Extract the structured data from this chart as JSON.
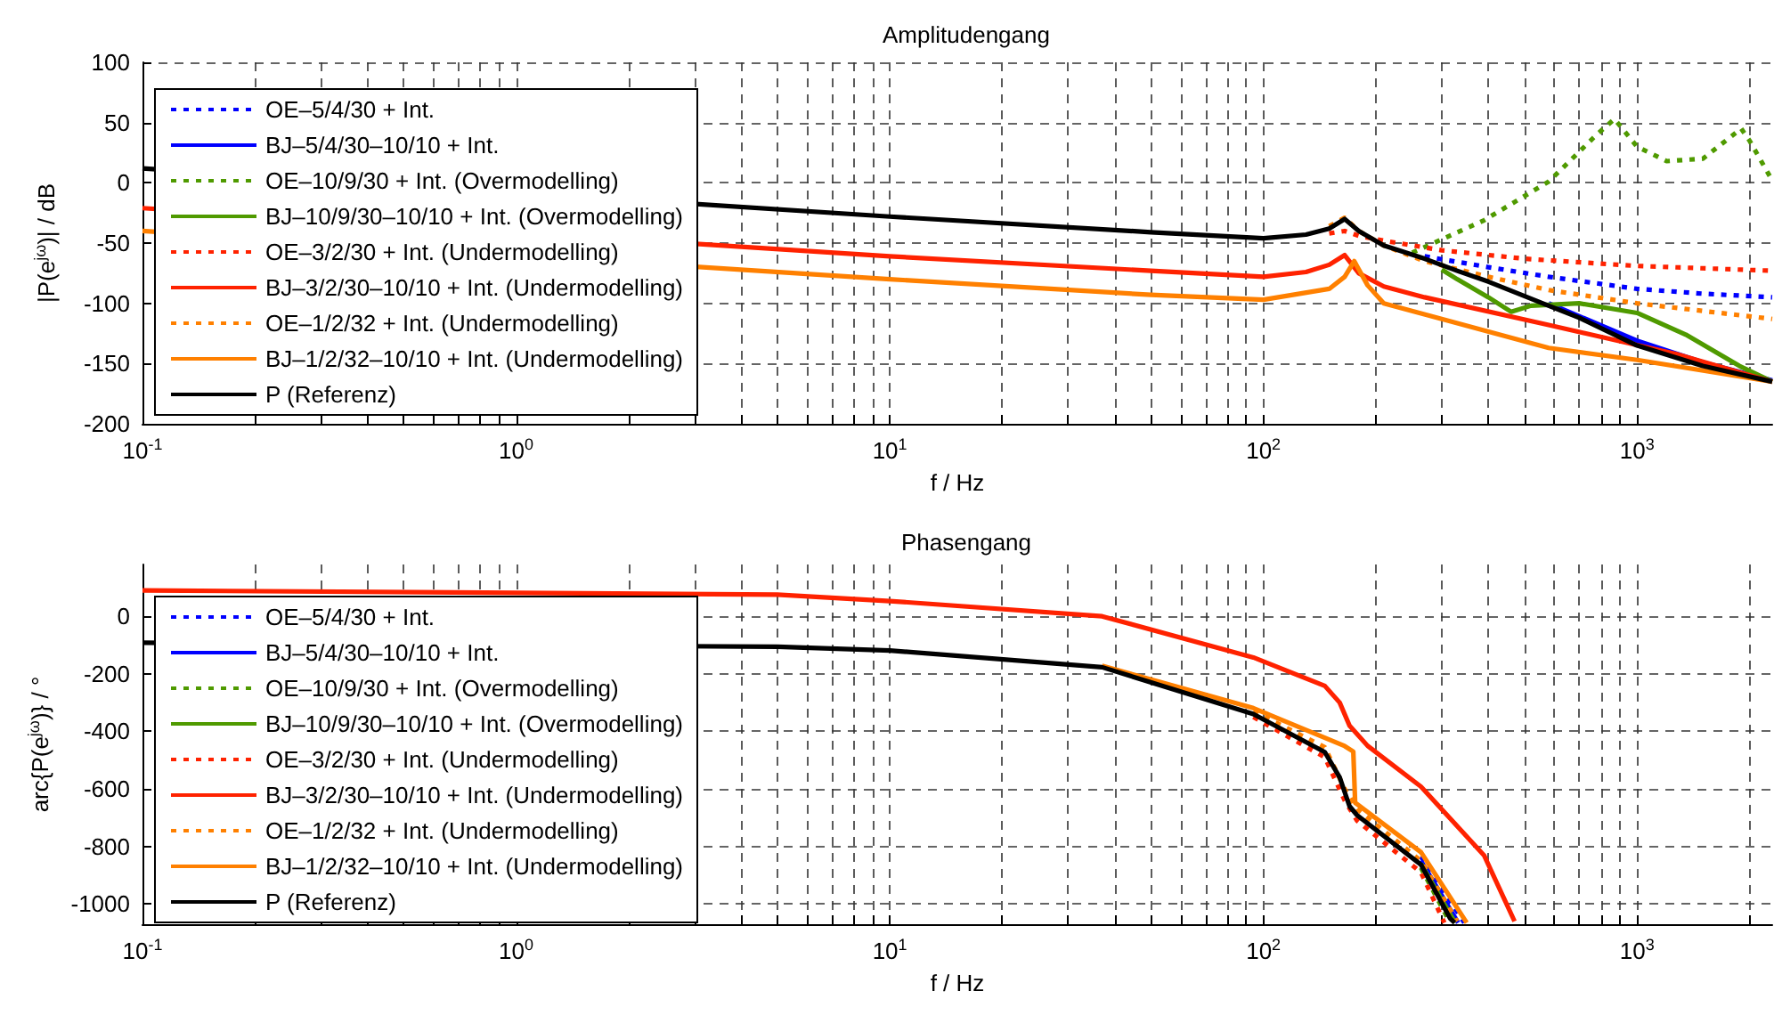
{
  "chart_data": [
    {
      "type": "line",
      "title": "Amplitudengang",
      "xlabel": "f / Hz",
      "ylabel": "|P(e$^{jω}$)| / dB",
      "log": "x",
      "grid": true,
      "legend": "left",
      "marker": "none",
      "xlim": [
        0.1,
        2300
      ],
      "ylim": [
        -200,
        100
      ],
      "yticks": [
        -200,
        -150,
        -100,
        -50,
        0,
        50,
        100
      ],
      "xticks": [
        {
          "value": 0.1,
          "label": "10$^{-1}$"
        },
        {
          "value": 0.2,
          "label": null
        },
        {
          "value": 0.3,
          "label": null
        },
        {
          "value": 0.4,
          "label": null
        },
        {
          "value": 0.5,
          "label": null
        },
        {
          "value": 0.6,
          "label": null
        },
        {
          "value": 0.7,
          "label": null
        },
        {
          "value": 0.8,
          "label": null
        },
        {
          "value": 0.9,
          "label": null
        },
        {
          "value": 1,
          "label": "10$^{0}$"
        },
        {
          "value": 2,
          "label": null
        },
        {
          "value": 3,
          "label": null
        },
        {
          "value": 4,
          "label": null
        },
        {
          "value": 5,
          "label": null
        },
        {
          "value": 6,
          "label": null
        },
        {
          "value": 7,
          "label": null
        },
        {
          "value": 8,
          "label": null
        },
        {
          "value": 9,
          "label": null
        },
        {
          "value": 10,
          "label": "10$^{1}$"
        },
        {
          "value": 20,
          "label": null
        },
        {
          "value": 30,
          "label": null
        },
        {
          "value": 40,
          "label": null
        },
        {
          "value": 50,
          "label": null
        },
        {
          "value": 60,
          "label": null
        },
        {
          "value": 70,
          "label": null
        },
        {
          "value": 80,
          "label": null
        },
        {
          "value": 90,
          "label": null
        },
        {
          "value": 100,
          "label": "10$^{2}$"
        },
        {
          "value": 200,
          "label": null
        },
        {
          "value": 300,
          "label": null
        },
        {
          "value": 400,
          "label": null
        },
        {
          "value": 500,
          "label": null
        },
        {
          "value": 600,
          "label": null
        },
        {
          "value": 700,
          "label": null
        },
        {
          "value": 800,
          "label": null
        },
        {
          "value": 900,
          "label": null
        },
        {
          "value": 1000,
          "label": "10$^{3}$"
        },
        {
          "value": 2000,
          "label": null
        }
      ],
      "series": [
        {
          "name": "OE–5/4/30 + Int.",
          "color": "#0000ff",
          "line_style": "dotted",
          "x": [
            270,
            400,
            580,
            1000,
            1500,
            2300
          ],
          "values": [
            -61,
            -70,
            -78,
            -88,
            -92,
            -95
          ]
        },
        {
          "name": "BJ–5/4/30–10/10 + Int.",
          "color": "#0000ff",
          "line_style": "solid",
          "x": [
            580,
            1000,
            1500,
            2300
          ],
          "values": [
            -100,
            -131,
            -149,
            -164
          ]
        },
        {
          "name": "OE–10/9/30 + Int. (Overmodelling)",
          "color": "#4f9a00",
          "line_style": "dotted",
          "x": [
            250,
            390,
            580,
            780,
            870,
            1000,
            1200,
            1500,
            1900,
            2000,
            2300
          ],
          "values": [
            -58,
            -31,
            1,
            40,
            53,
            30,
            18,
            20,
            45,
            35,
            2
          ]
        },
        {
          "name": "BJ–10/9/30–10/10 + Int. (Overmodelling)",
          "color": "#4f9a00",
          "line_style": "solid",
          "x": [
            300,
            330,
            400,
            460,
            520,
            700,
            1000,
            1350,
            1880,
            2300
          ],
          "values": [
            -72,
            -80,
            -95,
            -107,
            -102,
            -100,
            -108,
            -126,
            -152,
            -165
          ]
        },
        {
          "name": "OE–3/2/30 + Int. (Undermodelling)",
          "color": "#ff2200",
          "line_style": "dotted",
          "x": [
            150,
            165,
            180,
            210,
            300,
            500,
            1000,
            2300
          ],
          "values": [
            -42,
            -40,
            -44,
            -48,
            -56,
            -63,
            -69,
            -73
          ]
        },
        {
          "name": "BJ–3/2/30–10/10 + Int. (Undermodelling)",
          "color": "#ff2200",
          "line_style": "solid",
          "x": [
            0.1,
            10,
            50,
            100,
            130,
            150,
            165,
            180,
            210,
            270,
            580,
            1270,
            2300
          ],
          "values": [
            -21,
            -61,
            -73,
            -78,
            -74,
            -68,
            -60,
            -75,
            -86,
            -95,
            -118,
            -142,
            -165
          ]
        },
        {
          "name": "OE–1/2/32 + Int. (Undermodelling)",
          "color": "#ff8000",
          "line_style": "dotted",
          "x": [
            150,
            165,
            180,
            210,
            270,
            400,
            580,
            1000,
            2300
          ],
          "values": [
            -36,
            -29,
            -40,
            -52,
            -65,
            -78,
            -89,
            -100,
            -113
          ]
        },
        {
          "name": "BJ–1/2/32–10/10 + Int. (Undermodelling)",
          "color": "#ff8000",
          "line_style": "solid",
          "x": [
            0.1,
            10,
            50,
            100,
            150,
            165,
            175,
            190,
            210,
            300,
            580,
            1000,
            2300
          ],
          "values": [
            -40,
            -80,
            -93,
            -97,
            -88,
            -78,
            -65,
            -85,
            -100,
            -113,
            -137,
            -147,
            -165
          ]
        },
        {
          "name": "P (Referenz)",
          "color": "#000000",
          "line_style": "solid",
          "x": [
            0.1,
            10,
            50,
            100,
            130,
            150,
            165,
            180,
            210,
            270,
            330,
            400,
            580,
            700,
            1000,
            1500,
            2300
          ],
          "values": [
            12,
            -28,
            -41,
            -46,
            -43,
            -38,
            -30,
            -40,
            -52,
            -63,
            -73,
            -82,
            -102,
            -112,
            -135,
            -152,
            -165
          ]
        }
      ]
    },
    {
      "type": "line",
      "title": "Phasengang",
      "xlabel": "f / Hz",
      "ylabel": "arc{P(e$^{jω}$)} / °",
      "log": "x",
      "grid": true,
      "legend": "left",
      "marker": "none",
      "xlim": [
        0.1,
        2300
      ],
      "ylim": [
        -1070,
        180
      ],
      "yticks": [
        -1000,
        -800,
        -600,
        -400,
        -200,
        0
      ],
      "xticks": [
        {
          "value": 0.1,
          "label": "10$^{-1}$"
        },
        {
          "value": 0.2,
          "label": null
        },
        {
          "value": 0.3,
          "label": null
        },
        {
          "value": 0.4,
          "label": null
        },
        {
          "value": 0.5,
          "label": null
        },
        {
          "value": 0.6,
          "label": null
        },
        {
          "value": 0.7,
          "label": null
        },
        {
          "value": 0.8,
          "label": null
        },
        {
          "value": 0.9,
          "label": null
        },
        {
          "value": 1,
          "label": "10$^{0}$"
        },
        {
          "value": 2,
          "label": null
        },
        {
          "value": 3,
          "label": null
        },
        {
          "value": 4,
          "label": null
        },
        {
          "value": 5,
          "label": null
        },
        {
          "value": 6,
          "label": null
        },
        {
          "value": 7,
          "label": null
        },
        {
          "value": 8,
          "label": null
        },
        {
          "value": 9,
          "label": null
        },
        {
          "value": 10,
          "label": "10$^{1}$"
        },
        {
          "value": 20,
          "label": null
        },
        {
          "value": 30,
          "label": null
        },
        {
          "value": 40,
          "label": null
        },
        {
          "value": 50,
          "label": null
        },
        {
          "value": 60,
          "label": null
        },
        {
          "value": 70,
          "label": null
        },
        {
          "value": 80,
          "label": null
        },
        {
          "value": 90,
          "label": null
        },
        {
          "value": 100,
          "label": "10$^{2}$"
        },
        {
          "value": 200,
          "label": null
        },
        {
          "value": 300,
          "label": null
        },
        {
          "value": 400,
          "label": null
        },
        {
          "value": 500,
          "label": null
        },
        {
          "value": 600,
          "label": null
        },
        {
          "value": 700,
          "label": null
        },
        {
          "value": 800,
          "label": null
        },
        {
          "value": 900,
          "label": null
        },
        {
          "value": 1000,
          "label": "10$^{3}$"
        },
        {
          "value": 2000,
          "label": null
        }
      ],
      "series": [
        {
          "name": "OE–5/4/30 + Int.",
          "color": "#0000ff",
          "line_style": "dotted",
          "x": [
            264,
            345
          ],
          "values": [
            -835,
            -1065
          ]
        },
        {
          "name": "BJ–5/4/30–10/10 + Int.",
          "color": "#0000ff",
          "line_style": "solid",
          "x": [
            264,
            332
          ],
          "values": [
            -850,
            -1065
          ]
        },
        {
          "name": "OE–10/9/30 + Int. (Overmodelling)",
          "color": "#4f9a00",
          "line_style": "dotted",
          "x": [
            264,
            316
          ],
          "values": [
            -874,
            -1065
          ]
        },
        {
          "name": "BJ–10/9/30–10/10 + Int. (Overmodelling)",
          "color": "#4f9a00",
          "line_style": "solid",
          "x": [
            264,
            326
          ],
          "values": [
            -860,
            -1065
          ]
        },
        {
          "name": "OE–3/2/30 + Int. (Undermodelling)",
          "color": "#ff2200",
          "line_style": "dotted",
          "x": [
            94,
            146,
            165,
            178,
            264,
            305
          ],
          "values": [
            -350,
            -490,
            -640,
            -710,
            -890,
            -1065
          ]
        },
        {
          "name": "BJ–3/2/30–10/10 + Int. (Undermodelling)",
          "color": "#ff2200",
          "line_style": "solid",
          "x": [
            0.1,
            5,
            10,
            37,
            94,
            146,
            160,
            170,
            190,
            264,
            390,
            470
          ],
          "values": [
            90,
            75,
            53,
            0,
            -143,
            -242,
            -300,
            -380,
            -450,
            -592,
            -832,
            -1060
          ]
        },
        {
          "name": "OE–1/2/32 + Int. (Undermodelling)",
          "color": "#ff8000",
          "line_style": "dotted",
          "x": [
            94,
            146,
            165,
            178,
            264,
            330
          ],
          "values": [
            -330,
            -455,
            -600,
            -670,
            -850,
            -1060
          ]
        },
        {
          "name": "BJ–1/2/32–10/10 + Int. (Undermodelling)",
          "color": "#ff8000",
          "line_style": "solid",
          "x": [
            37,
            94,
            165,
            174,
            176,
            264,
            350
          ],
          "values": [
            -172,
            -319,
            -451,
            -470,
            -648,
            -820,
            -1065
          ]
        },
        {
          "name": "P (Referenz)",
          "color": "#000000",
          "line_style": "solid",
          "x": [
            0.1,
            5,
            10,
            37,
            94,
            146,
            160,
            170,
            178,
            264,
            316,
            325
          ],
          "values": [
            -92,
            -106,
            -119,
            -177,
            -340,
            -472,
            -560,
            -660,
            -691,
            -863,
            -1050,
            -1065
          ]
        }
      ]
    }
  ]
}
